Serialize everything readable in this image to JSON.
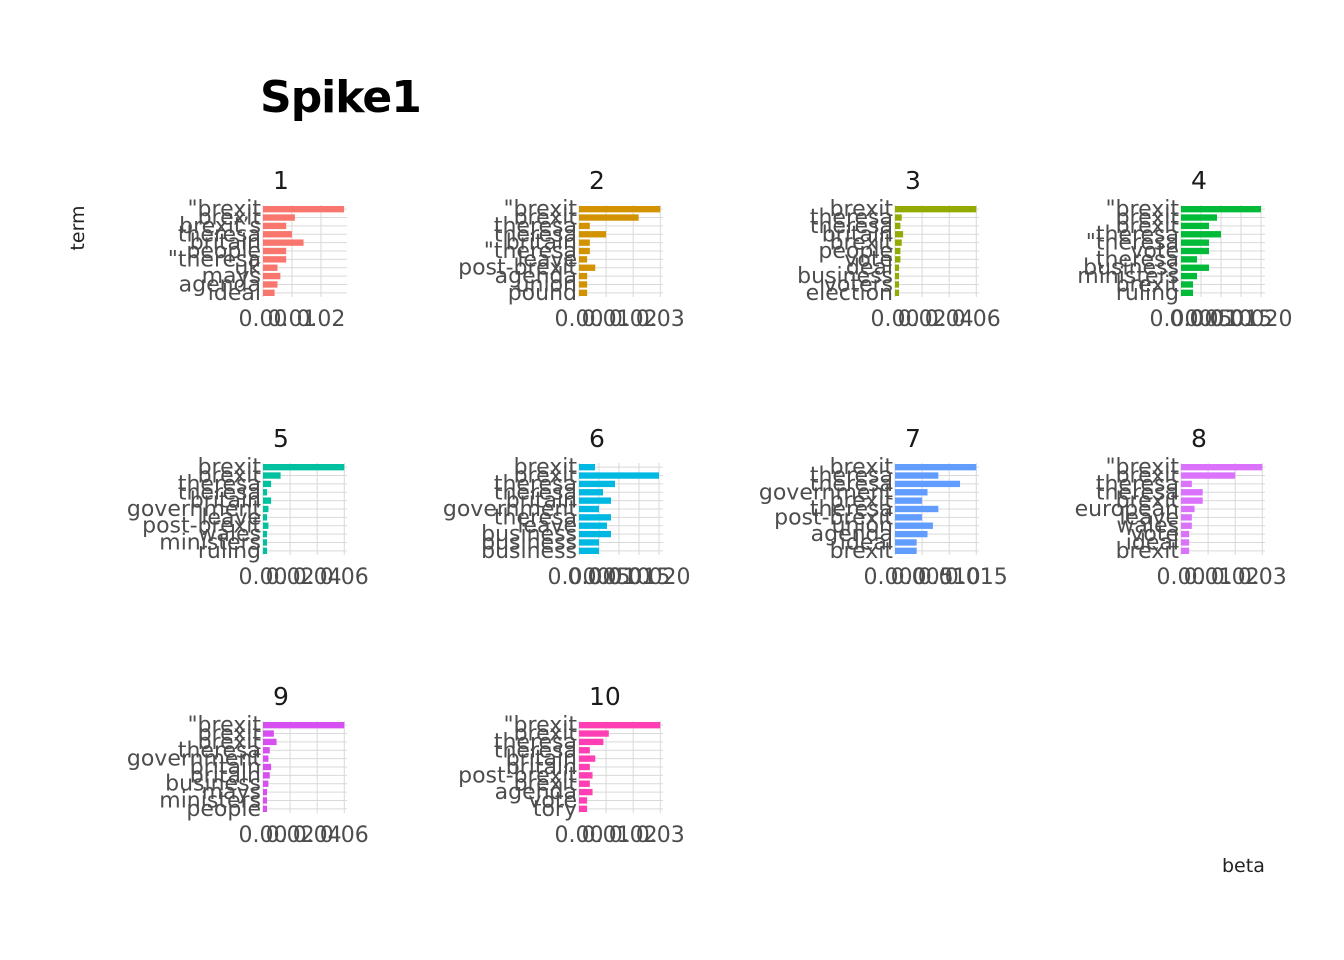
{
  "title": "Spike1",
  "chart_data": {
    "type": "bar",
    "orientation": "horizontal",
    "title": "Spike1",
    "xlabel": "beta",
    "ylabel": "term",
    "grid": true,
    "legend": "none",
    "facets": [
      {
        "label": "1",
        "color": "#F8766D",
        "terms": [
          "\"brexit",
          "brexit",
          "brexit’s",
          "theresa",
          "britain",
          "people",
          "\"theresa",
          "uk",
          "mays",
          "agenda",
          "ideal"
        ],
        "values": [
          0.028,
          0.011,
          0.008,
          0.01,
          0.014,
          0.008,
          0.008,
          0.005,
          0.006,
          0.005,
          0.004
        ],
        "xlim": [
          0,
          0.029
        ],
        "xticks": [
          {
            "v": 0,
            "label": "0.00"
          },
          {
            "v": 0.01,
            "label": "0.01"
          },
          {
            "v": 0.02,
            "label": "0.02"
          }
        ]
      },
      {
        "label": "2",
        "color": "#D39200",
        "terms": [
          "\"brexit",
          "brexit",
          "theresa",
          "theresa",
          "britain",
          "\"theresa",
          "leave",
          "post-brexit",
          "agenda",
          "union",
          "pound"
        ],
        "values": [
          0.03,
          0.022,
          0.004,
          0.01,
          0.004,
          0.004,
          0.003,
          0.006,
          0.003,
          0.003,
          0.003
        ],
        "xlim": [
          0,
          0.031
        ],
        "xticks": [
          {
            "v": 0,
            "label": "0.00"
          },
          {
            "v": 0.01,
            "label": "0.01"
          },
          {
            "v": 0.02,
            "label": "0.02"
          },
          {
            "v": 0.03,
            "label": "0.03"
          }
        ]
      },
      {
        "label": "3",
        "color": "#93AA00",
        "terms": [
          "brexit",
          "theresa",
          "theresa",
          "britain",
          "brexit",
          "people",
          "vote",
          "deal",
          "business",
          "voters",
          "election"
        ],
        "values": [
          0.06,
          0.005,
          0.004,
          0.006,
          0.005,
          0.004,
          0.004,
          0.003,
          0.003,
          0.003,
          0.003
        ],
        "xlim": [
          0,
          0.062
        ],
        "xticks": [
          {
            "v": 0,
            "label": "0.00"
          },
          {
            "v": 0.02,
            "label": "0.02"
          },
          {
            "v": 0.04,
            "label": "0.04"
          },
          {
            "v": 0.06,
            "label": "0.06"
          }
        ]
      },
      {
        "label": "4",
        "color": "#00BA38",
        "terms": [
          "\"brexit",
          "brexit",
          "brexit",
          "theresa",
          "\"theresa",
          "vote",
          "theresa",
          "business",
          "ministers",
          "brexit",
          "ruling"
        ],
        "values": [
          0.02,
          0.009,
          0.007,
          0.01,
          0.007,
          0.007,
          0.004,
          0.007,
          0.004,
          0.003,
          0.003
        ],
        "xlim": [
          0,
          0.021
        ],
        "xticks": [
          {
            "v": 0,
            "label": "0.000"
          },
          {
            "v": 0.005,
            "label": "0.005"
          },
          {
            "v": 0.01,
            "label": "0.010"
          },
          {
            "v": 0.015,
            "label": "0.015"
          },
          {
            "v": 0.02,
            "label": "0.020"
          }
        ]
      },
      {
        "label": "5",
        "color": "#00C19F",
        "terms": [
          "brexit",
          "brexit",
          "theresa",
          "theresa",
          "britain",
          "government",
          "leave",
          "post-brexit",
          "wales",
          "ministers",
          "ruling"
        ],
        "values": [
          0.06,
          0.013,
          0.006,
          0.003,
          0.006,
          0.004,
          0.003,
          0.004,
          0.003,
          0.003,
          0.003
        ],
        "xlim": [
          0,
          0.062
        ],
        "xticks": [
          {
            "v": 0,
            "label": "0.00"
          },
          {
            "v": 0.02,
            "label": "0.02"
          },
          {
            "v": 0.04,
            "label": "0.04"
          },
          {
            "v": 0.06,
            "label": "0.06"
          }
        ]
      },
      {
        "label": "6",
        "color": "#00B9E3",
        "terms": [
          "brexit",
          "brexit",
          "theresa",
          "theresa",
          "britain",
          "government",
          "theresa",
          "leave",
          "business",
          "business",
          "business"
        ],
        "values": [
          0.004,
          0.02,
          0.009,
          0.006,
          0.008,
          0.005,
          0.008,
          0.007,
          0.008,
          0.005,
          0.005
        ],
        "xlim": [
          0,
          0.021
        ],
        "xticks": [
          {
            "v": 0,
            "label": "0.000"
          },
          {
            "v": 0.005,
            "label": "0.005"
          },
          {
            "v": 0.01,
            "label": "0.010"
          },
          {
            "v": 0.015,
            "label": "0.015"
          },
          {
            "v": 0.02,
            "label": "0.020"
          }
        ]
      },
      {
        "label": "7",
        "color": "#619CFF",
        "terms": [
          "brexit",
          "theresa",
          "theresa",
          "government",
          "brexit",
          "theresa",
          "post-brexit",
          "union",
          "agenda",
          "ideal",
          "brexit"
        ],
        "values": [
          0.015,
          0.008,
          0.012,
          0.006,
          0.005,
          0.008,
          0.005,
          0.007,
          0.006,
          0.004,
          0.004
        ],
        "xlim": [
          0,
          0.0155
        ],
        "xticks": [
          {
            "v": 0,
            "label": "0.000"
          },
          {
            "v": 0.005,
            "label": "0.005"
          },
          {
            "v": 0.01,
            "label": "0.010"
          },
          {
            "v": 0.015,
            "label": "0.015"
          }
        ]
      },
      {
        "label": "8",
        "color": "#DB72FB",
        "terms": [
          "\"brexit",
          "brexit",
          "theresa",
          "theresa",
          "brexit",
          "european",
          "leave",
          "wales",
          "vote",
          "ideal",
          "brexit"
        ],
        "values": [
          0.03,
          0.02,
          0.004,
          0.008,
          0.008,
          0.005,
          0.004,
          0.004,
          0.003,
          0.003,
          0.003
        ],
        "xlim": [
          0,
          0.031
        ],
        "xticks": [
          {
            "v": 0,
            "label": "0.00"
          },
          {
            "v": 0.01,
            "label": "0.01"
          },
          {
            "v": 0.02,
            "label": "0.02"
          },
          {
            "v": 0.03,
            "label": "0.03"
          }
        ]
      },
      {
        "label": "9",
        "color": "#D74FF0",
        "terms": [
          "\"brexit",
          "brexit",
          "brexit",
          "theresa",
          "government",
          "britain",
          "britain",
          "business",
          "mays",
          "ministers",
          "people"
        ],
        "values": [
          0.06,
          0.008,
          0.01,
          0.005,
          0.004,
          0.006,
          0.005,
          0.004,
          0.003,
          0.003,
          0.003
        ],
        "xlim": [
          0,
          0.062
        ],
        "xticks": [
          {
            "v": 0,
            "label": "0.00"
          },
          {
            "v": 0.02,
            "label": "0.02"
          },
          {
            "v": 0.04,
            "label": "0.04"
          },
          {
            "v": 0.06,
            "label": "0.06"
          }
        ]
      },
      {
        "label": "10",
        "color": "#FF3FB3",
        "terms": [
          "\"brexit",
          "brexit",
          "theresa",
          "theresa",
          "britain",
          "britain",
          "post-brexit",
          "brexit",
          "agenda",
          "vote",
          "tory"
        ],
        "values": [
          0.03,
          0.011,
          0.009,
          0.004,
          0.006,
          0.004,
          0.005,
          0.004,
          0.005,
          0.003,
          0.003
        ],
        "xlim": [
          0,
          0.031
        ],
        "xticks": [
          {
            "v": 0,
            "label": "0.00"
          },
          {
            "v": 0.01,
            "label": "0.01"
          },
          {
            "v": 0.02,
            "label": "0.02"
          },
          {
            "v": 0.03,
            "label": "0.03"
          }
        ]
      }
    ]
  }
}
